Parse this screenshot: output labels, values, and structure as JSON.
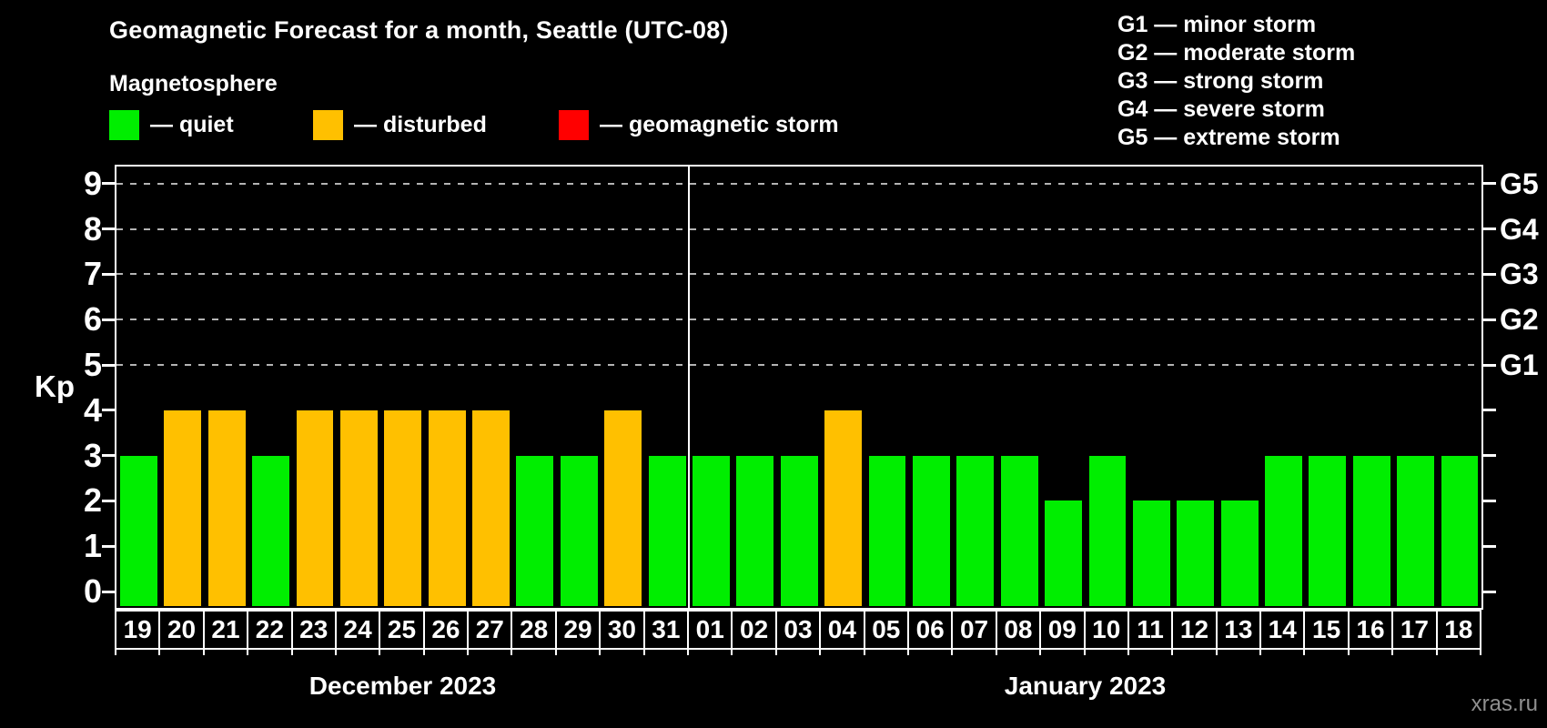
{
  "title": "Geomagnetic Forecast for a month, Seattle (UTC-08)",
  "subtitle": "Magnetosphere",
  "legend": {
    "items": [
      {
        "key": "quiet",
        "label": "— quiet"
      },
      {
        "key": "disturbed",
        "label": "— disturbed"
      },
      {
        "key": "storm",
        "label": "— geomagnetic storm"
      }
    ]
  },
  "g_scale_legend": {
    "items": [
      "G1 — minor storm",
      "G2 — moderate storm",
      "G3 — strong storm",
      "G4 — severe storm",
      "G5 — extreme storm"
    ]
  },
  "watermark": "xras.ru",
  "chart_data": {
    "type": "bar",
    "title": "Geomagnetic Forecast for a month, Seattle (UTC-08)",
    "ylabel": "Kp",
    "ylim": [
      0,
      9
    ],
    "yticks": [
      0,
      1,
      2,
      3,
      4,
      5,
      6,
      7,
      8,
      9
    ],
    "gridlines_kp": [
      5,
      6,
      7,
      8,
      9
    ],
    "grid": "dashed",
    "legend_position": "top",
    "right_axis": [
      {
        "kp": 5,
        "label": "G1"
      },
      {
        "kp": 6,
        "label": "G2"
      },
      {
        "kp": 7,
        "label": "G3"
      },
      {
        "kp": 8,
        "label": "G4"
      },
      {
        "kp": 9,
        "label": "G5"
      }
    ],
    "colors": {
      "quiet": "#00ee00",
      "disturbed": "#ffc000",
      "storm": "#ff0000",
      "axis": "#ffffff",
      "grid": "#b4b4b4"
    },
    "months": [
      {
        "label": "December 2023",
        "days": 13
      },
      {
        "label": "January 2023",
        "days": 18
      }
    ],
    "categories": [
      "19",
      "20",
      "21",
      "22",
      "23",
      "24",
      "25",
      "26",
      "27",
      "28",
      "29",
      "30",
      "31",
      "01",
      "02",
      "03",
      "04",
      "05",
      "06",
      "07",
      "08",
      "09",
      "10",
      "11",
      "12",
      "13",
      "14",
      "15",
      "16",
      "17",
      "18"
    ],
    "values": [
      3,
      4,
      4,
      3,
      4,
      4,
      4,
      4,
      4,
      3,
      3,
      4,
      3,
      3,
      3,
      3,
      4,
      3,
      3,
      3,
      3,
      2,
      3,
      2,
      2,
      2,
      3,
      3,
      3,
      3,
      3
    ],
    "statuses": [
      "quiet",
      "disturbed",
      "disturbed",
      "quiet",
      "disturbed",
      "disturbed",
      "disturbed",
      "disturbed",
      "disturbed",
      "quiet",
      "quiet",
      "disturbed",
      "quiet",
      "quiet",
      "quiet",
      "quiet",
      "disturbed",
      "quiet",
      "quiet",
      "quiet",
      "quiet",
      "quiet",
      "quiet",
      "quiet",
      "quiet",
      "quiet",
      "quiet",
      "quiet",
      "quiet",
      "quiet",
      "quiet"
    ]
  }
}
